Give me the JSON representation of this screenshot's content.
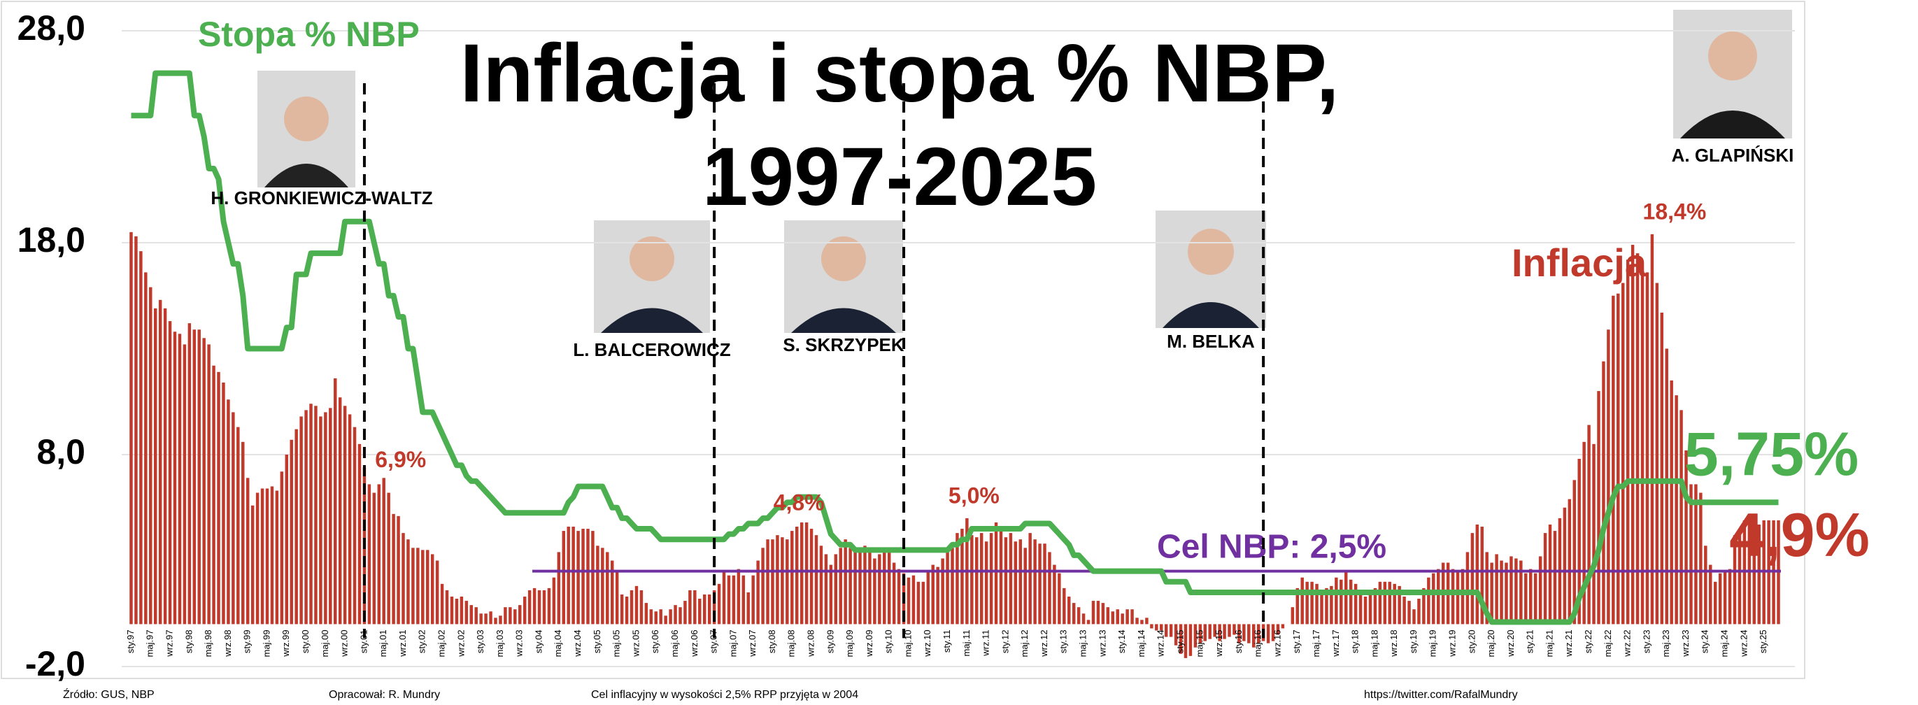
{
  "chart_data": {
    "type": "bar",
    "title": [
      "Inflacja i stopa % NBP,",
      "1997-2025"
    ],
    "ylim": [
      -2,
      28
    ],
    "yticks": [
      {
        "value": -2,
        "label": "-2,0"
      },
      {
        "value": 8,
        "label": "8,0"
      },
      {
        "value": 18,
        "label": "18,0"
      },
      {
        "value": 28,
        "label": "28,0"
      }
    ],
    "grid": true,
    "categories": [
      "sty.97",
      null,
      null,
      null,
      "maj.97",
      null,
      null,
      null,
      "wrz.97",
      null,
      null,
      null,
      "sty.98",
      null,
      null,
      null,
      "maj.98",
      null,
      null,
      null,
      "wrz.98",
      null,
      null,
      null,
      "sty.99",
      null,
      null,
      null,
      "maj.99",
      null,
      null,
      null,
      "wrz.99",
      null,
      null,
      null,
      "sty.00",
      null,
      null,
      null,
      "maj.00",
      null,
      null,
      null,
      "wrz.00",
      null,
      null,
      null,
      "sty.01",
      null,
      null,
      null,
      "maj.01",
      null,
      null,
      null,
      "wrz.01",
      null,
      null,
      null,
      "sty.02",
      null,
      null,
      null,
      "maj.02",
      null,
      null,
      null,
      "wrz.02",
      null,
      null,
      null,
      "sty.03",
      null,
      null,
      null,
      "maj.03",
      null,
      null,
      null,
      "wrz.03",
      null,
      null,
      null,
      "sty.04",
      null,
      null,
      null,
      "maj.04",
      null,
      null,
      null,
      "wrz.04",
      null,
      null,
      null,
      "sty.05",
      null,
      null,
      null,
      "maj.05",
      null,
      null,
      null,
      "wrz.05",
      null,
      null,
      null,
      "sty.06",
      null,
      null,
      null,
      "maj.06",
      null,
      null,
      null,
      "wrz.06",
      null,
      null,
      null,
      "sty.07",
      null,
      null,
      null,
      "maj.07",
      null,
      null,
      null,
      "wrz.07",
      null,
      null,
      null,
      "sty.08",
      null,
      null,
      null,
      "maj.08",
      null,
      null,
      null,
      "wrz.08",
      null,
      null,
      null,
      "sty.09",
      null,
      null,
      null,
      "maj.09",
      null,
      null,
      null,
      "wrz.09",
      null,
      null,
      null,
      "sty.10",
      null,
      null,
      null,
      "maj.10",
      null,
      null,
      null,
      "wrz.10",
      null,
      null,
      null,
      "sty.11",
      null,
      null,
      null,
      "maj.11",
      null,
      null,
      null,
      "wrz.11",
      null,
      null,
      null,
      "sty.12",
      null,
      null,
      null,
      "maj.12",
      null,
      null,
      null,
      "wrz.12",
      null,
      null,
      null,
      "sty.13",
      null,
      null,
      null,
      "maj.13",
      null,
      null,
      null,
      "wrz.13",
      null,
      null,
      null,
      "sty.14",
      null,
      null,
      null,
      "maj.14",
      null,
      null,
      null,
      "wrz.14",
      null,
      null,
      null,
      "sty.15",
      null,
      null,
      null,
      "maj.15",
      null,
      null,
      null,
      "wrz.15",
      null,
      null,
      null,
      "sty.16",
      null,
      null,
      null,
      "maj.16",
      null,
      null,
      null,
      "wrz.16",
      null,
      null,
      null,
      "sty.17",
      null,
      null,
      null,
      "maj.17",
      null,
      null,
      null,
      "wrz.17",
      null,
      null,
      null,
      "sty.18",
      null,
      null,
      null,
      "maj.18",
      null,
      null,
      null,
      "wrz.18",
      null,
      null,
      null,
      "sty.19",
      null,
      null,
      null,
      "maj.19",
      null,
      null,
      null,
      "wrz.19",
      null,
      null,
      null,
      "sty.20",
      null,
      null,
      null,
      "maj.20",
      null,
      null,
      null,
      "wrz.20",
      null,
      null,
      null,
      "sty.21",
      null,
      null,
      null,
      "maj.21",
      null,
      null,
      null,
      "wrz.21",
      null,
      null,
      null,
      "sty.22",
      null,
      null,
      null,
      "maj.22",
      null,
      null,
      null,
      "wrz.22",
      null,
      null,
      null,
      "sty.23",
      null,
      null,
      null,
      "maj.23",
      null,
      null,
      null,
      "wrz.23",
      null,
      null,
      null,
      "sty.24",
      null,
      null,
      null,
      "maj.24",
      null,
      null,
      null,
      "wrz.24",
      null,
      null,
      null,
      "sty.25",
      null,
      null,
      null
    ],
    "series": [
      {
        "name": "Inflacja",
        "color": "#c0392b",
        "values": [
          18.5,
          18.3,
          17.6,
          16.6,
          15.9,
          14.9,
          15.3,
          14.9,
          14.3,
          13.8,
          13.7,
          13.2,
          14.2,
          13.9,
          13.9,
          13.5,
          13.2,
          12.2,
          11.9,
          11.4,
          10.6,
          10.0,
          9.3,
          8.6,
          6.9,
          5.6,
          6.2,
          6.4,
          6.4,
          6.5,
          6.3,
          7.2,
          8.0,
          8.7,
          9.2,
          9.8,
          10.1,
          10.4,
          10.3,
          9.8,
          10.0,
          10.2,
          11.6,
          10.7,
          10.3,
          9.9,
          9.3,
          8.5,
          7.4,
          6.6,
          6.2,
          6.6,
          6.9,
          6.2,
          5.2,
          5.1,
          4.3,
          4.0,
          3.6,
          3.6,
          3.5,
          3.5,
          3.3,
          3.0,
          1.9,
          1.6,
          1.3,
          1.2,
          1.3,
          1.1,
          0.9,
          0.8,
          0.5,
          0.5,
          0.6,
          0.3,
          0.4,
          0.8,
          0.8,
          0.7,
          0.9,
          1.3,
          1.6,
          1.7,
          1.6,
          1.6,
          1.7,
          2.2,
          3.4,
          4.4,
          4.6,
          4.6,
          4.4,
          4.5,
          4.5,
          4.4,
          3.7,
          3.6,
          3.4,
          3.0,
          2.5,
          1.4,
          1.3,
          1.6,
          1.8,
          1.6,
          1.0,
          0.7,
          0.6,
          0.7,
          0.4,
          0.7,
          0.9,
          0.8,
          1.1,
          1.6,
          1.6,
          1.2,
          1.4,
          1.4,
          1.6,
          1.9,
          2.5,
          2.3,
          2.3,
          2.6,
          2.3,
          1.5,
          2.3,
          3.0,
          3.6,
          4.0,
          4.0,
          4.2,
          4.1,
          4.0,
          4.4,
          4.6,
          4.8,
          4.8,
          4.5,
          4.2,
          3.7,
          3.3,
          2.8,
          3.3,
          3.6,
          4.0,
          3.6,
          3.5,
          3.6,
          3.7,
          3.4,
          3.1,
          3.3,
          3.5,
          3.5,
          2.9,
          2.6,
          2.4,
          2.2,
          2.3,
          2.0,
          2.0,
          2.5,
          2.8,
          2.7,
          3.1,
          3.6,
          3.6,
          4.3,
          4.5,
          5.0,
          4.2,
          4.1,
          4.3,
          3.9,
          4.3,
          4.8,
          4.6,
          4.1,
          4.3,
          3.9,
          4.0,
          3.6,
          4.3,
          4.0,
          3.8,
          3.8,
          3.4,
          2.8,
          2.4,
          1.7,
          1.3,
          1.0,
          0.8,
          0.5,
          0.2,
          1.1,
          1.1,
          1.0,
          0.8,
          0.6,
          0.7,
          0.5,
          0.7,
          0.7,
          0.3,
          0.2,
          0.3,
          -0.2,
          -0.3,
          -0.3,
          -0.6,
          -0.6,
          -1.0,
          -1.4,
          -1.6,
          -1.5,
          -1.1,
          -0.9,
          -0.8,
          -0.7,
          -0.6,
          -0.8,
          -0.7,
          -0.6,
          -0.5,
          -0.9,
          -0.8,
          -0.9,
          -1.1,
          -0.9,
          -0.8,
          -0.9,
          -0.8,
          -0.5,
          -0.2,
          0.0,
          0.8,
          1.7,
          2.2,
          2.0,
          2.0,
          1.9,
          1.5,
          1.7,
          1.8,
          2.2,
          2.1,
          2.5,
          2.1,
          1.9,
          1.4,
          1.3,
          1.6,
          1.7,
          2.0,
          2.0,
          2.0,
          1.9,
          1.8,
          1.3,
          1.1,
          0.7,
          1.2,
          1.7,
          2.2,
          2.4,
          2.6,
          2.9,
          2.9,
          2.6,
          2.5,
          2.6,
          3.4,
          4.3,
          4.7,
          4.6,
          3.4,
          2.9,
          3.3,
          3.0,
          2.9,
          3.2,
          3.1,
          3.0,
          2.4,
          2.6,
          2.4,
          3.2,
          4.3,
          4.7,
          4.4,
          5.0,
          5.5,
          5.9,
          6.8,
          7.8,
          8.6,
          9.4,
          8.5,
          11.0,
          12.4,
          13.9,
          15.5,
          15.6,
          16.1,
          17.2,
          17.9,
          17.5,
          16.6,
          16.6,
          18.4,
          16.1,
          14.7,
          13.0,
          11.5,
          10.8,
          10.1,
          8.2,
          6.6,
          6.6,
          6.2,
          3.7,
          2.8,
          2.0,
          2.4,
          2.5,
          2.6,
          4.2,
          4.3,
          4.9,
          5.0,
          4.7,
          4.7,
          4.9,
          4.9,
          4.9,
          4.9
        ]
      },
      {
        "name": "Stopa % NBP",
        "color": "#4caf50",
        "values": [
          24,
          24,
          24,
          24,
          24,
          26,
          26,
          26,
          26,
          26,
          26,
          26,
          26,
          24,
          24,
          23,
          21.5,
          21.5,
          21,
          19,
          18,
          17,
          17,
          15.5,
          13,
          13,
          13,
          13,
          13,
          13,
          13,
          13,
          14,
          14,
          16.5,
          16.5,
          16.5,
          17.5,
          17.5,
          17.5,
          17.5,
          17.5,
          17.5,
          17.5,
          19,
          19,
          19,
          19,
          19,
          19,
          18,
          17,
          17,
          15.5,
          15.5,
          14.5,
          14.5,
          13,
          13,
          11.5,
          10,
          10,
          10,
          9.5,
          9,
          8.5,
          8,
          7.5,
          7.5,
          7,
          6.75,
          6.75,
          6.5,
          6.25,
          6,
          5.75,
          5.5,
          5.25,
          5.25,
          5.25,
          5.25,
          5.25,
          5.25,
          5.25,
          5.25,
          5.25,
          5.25,
          5.25,
          5.25,
          5.25,
          5.75,
          6,
          6.5,
          6.5,
          6.5,
          6.5,
          6.5,
          6.5,
          6,
          5.5,
          5.5,
          5,
          5,
          4.75,
          4.5,
          4.5,
          4.5,
          4.5,
          4.25,
          4,
          4,
          4,
          4,
          4,
          4,
          4,
          4,
          4,
          4,
          4,
          4,
          4,
          4,
          4.25,
          4.25,
          4.5,
          4.5,
          4.75,
          4.75,
          4.75,
          5,
          5,
          5.25,
          5.5,
          5.5,
          5.75,
          5.75,
          6,
          6,
          6,
          6,
          6,
          5.75,
          5,
          4.25,
          4,
          3.75,
          3.75,
          3.75,
          3.5,
          3.5,
          3.5,
          3.5,
          3.5,
          3.5,
          3.5,
          3.5,
          3.5,
          3.5,
          3.5,
          3.5,
          3.5,
          3.5,
          3.5,
          3.5,
          3.5,
          3.5,
          3.5,
          3.5,
          3.75,
          3.75,
          4,
          4,
          4.5,
          4.5,
          4.5,
          4.5,
          4.5,
          4.5,
          4.5,
          4.5,
          4.5,
          4.5,
          4.5,
          4.75,
          4.75,
          4.75,
          4.75,
          4.75,
          4.75,
          4.5,
          4.25,
          4,
          3.75,
          3.25,
          3.25,
          3,
          2.75,
          2.5,
          2.5,
          2.5,
          2.5,
          2.5,
          2.5,
          2.5,
          2.5,
          2.5,
          2.5,
          2.5,
          2.5,
          2.5,
          2.5,
          2.5,
          2,
          2,
          2,
          2,
          2,
          1.5,
          1.5,
          1.5,
          1.5,
          1.5,
          1.5,
          1.5,
          1.5,
          1.5,
          1.5,
          1.5,
          1.5,
          1.5,
          1.5,
          1.5,
          1.5,
          1.5,
          1.5,
          1.5,
          1.5,
          1.5,
          1.5,
          1.5,
          1.5,
          1.5,
          1.5,
          1.5,
          1.5,
          1.5,
          1.5,
          1.5,
          1.5,
          1.5,
          1.5,
          1.5,
          1.5,
          1.5,
          1.5,
          1.5,
          1.5,
          1.5,
          1.5,
          1.5,
          1.5,
          1.5,
          1.5,
          1.5,
          1.5,
          1.5,
          1.5,
          1.5,
          1.5,
          1.5,
          1.5,
          1.5,
          1.5,
          1.5,
          1.5,
          1.5,
          1.5,
          1,
          0.5,
          0.1,
          0.1,
          0.1,
          0.1,
          0.1,
          0.1,
          0.1,
          0.1,
          0.1,
          0.1,
          0.1,
          0.1,
          0.1,
          0.1,
          0.1,
          0.1,
          0.1,
          0.5,
          1.25,
          1.75,
          2.25,
          2.75,
          3.5,
          4.5,
          5.25,
          6,
          6.5,
          6.5,
          6.75,
          6.75,
          6.75,
          6.75,
          6.75,
          6.75,
          6.75,
          6.75,
          6.75,
          6.75,
          6.75,
          6.75,
          6,
          5.75,
          5.75,
          5.75,
          5.75,
          5.75,
          5.75,
          5.75,
          5.75,
          5.75,
          5.75,
          5.75,
          5.75,
          5.75,
          5.75,
          5.75,
          5.75,
          5.75,
          5.75,
          5.75
        ]
      }
    ],
    "target": {
      "value": 2.5,
      "label": "Cel NBP: 2,5%",
      "color": "#7030a0"
    },
    "annotations": [
      "6,9%",
      "4,8%",
      "5,0%",
      "18,4%",
      "5,75%",
      "4,9%"
    ],
    "presidents": [
      "H. GRONKIEWICZ-WALTZ",
      "L. BALCEROWICZ",
      "S. SKRZYPEK",
      "M. BELKA",
      "A. GLAPIŃSKI"
    ],
    "footer": [
      "Źródło: GUS, NBP",
      "Opracował: R. Mundry",
      "Cel inflacyjny w wysokości 2,5% RPP przyjęta w 2004",
      "https://twitter.com/RafalMundry"
    ]
  }
}
